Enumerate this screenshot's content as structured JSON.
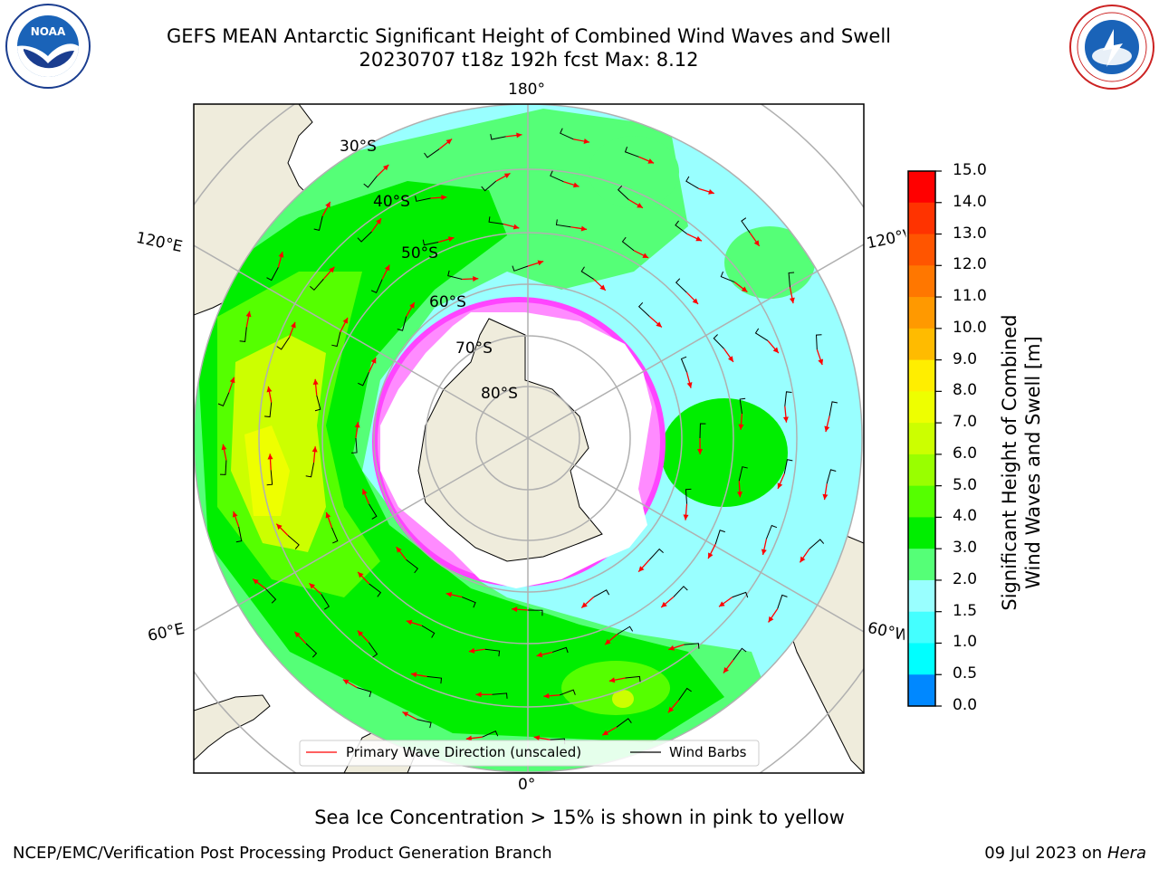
{
  "header": {
    "title_line1": "GEFS MEAN Antarctic Significant Height of Combined Wind Waves and Swell",
    "title_line2": "20230707 t18z 192h fcst   Max: 8.12"
  },
  "logos": {
    "left": "NOAA",
    "left_ring": "NATIONAL OCEANIC AND ATMOSPHERIC ADMINISTRATION · U.S. DEPARTMENT OF COMMERCE",
    "right_ring": "NATIONAL WEATHER SERVICE"
  },
  "map": {
    "lon_labels": {
      "top": "180°",
      "bottom": "0°",
      "upper_left": "120°E",
      "lower_left": "60°E",
      "upper_right": "120°W",
      "lower_right": "60°W"
    },
    "lat_labels": [
      "30°S",
      "40°S",
      "50°S",
      "60°S",
      "70°S",
      "80°S"
    ],
    "legend": {
      "wave_direction": "Primary Wave Direction (unscaled)",
      "wind_barbs": "Wind Barbs"
    }
  },
  "colorbar": {
    "label_line1": "Significant Height of Combined",
    "label_line2": "Wind Waves and Swell [m]",
    "ticks": [
      "15.0",
      "14.0",
      "13.0",
      "12.0",
      "11.0",
      "10.0",
      "9.0",
      "8.0",
      "7.0",
      "6.0",
      "5.0",
      "4.0",
      "3.0",
      "2.0",
      "1.5",
      "1.0",
      "0.5",
      "0.0"
    ],
    "colors": [
      "#ff0000",
      "#ff3300",
      "#ff5500",
      "#ff7700",
      "#ff9900",
      "#ffbb00",
      "#ffee00",
      "#eeff00",
      "#ccff00",
      "#99ff00",
      "#55ff00",
      "#00ee00",
      "#55ff77",
      "#99ffff",
      "#44ffff",
      "#00ffff",
      "#0088ff",
      "#0033ff",
      "#0000ff"
    ]
  },
  "notes": {
    "ice": "Sea Ice Concentration > 15% is shown in pink to yellow"
  },
  "footer": {
    "left": "NCEP/EMC/Verification Post Processing Product Generation Branch",
    "right_date": "09 Jul 2023 on ",
    "right_host": "Hera"
  }
}
